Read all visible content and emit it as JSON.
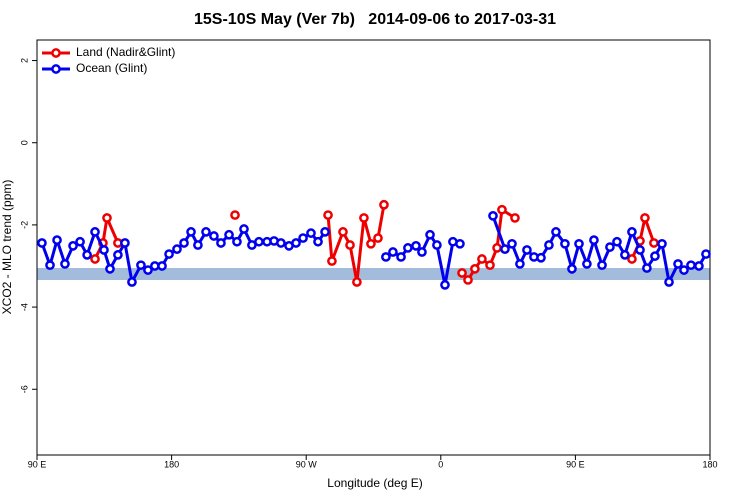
{
  "chart_data": {
    "type": "line",
    "title": "15S-10S May (Ver 7b)   2014-09-06 to 2017-03-31",
    "x_label": "Longitude (deg E)",
    "y_label": "XCO2 - MLO trend (ppm)",
    "xlim": [
      90,
      540
    ],
    "ylim": [
      -7.6,
      2.5
    ],
    "xticks": [
      {
        "value": 90,
        "label": "90 E"
      },
      180,
      {
        "value": 270,
        "label": "90 W"
      },
      {
        "value": 360,
        "label": "0"
      },
      {
        "value": 450,
        "label": "90 E"
      },
      {
        "value": 540,
        "label": "180"
      }
    ],
    "yticks": [
      -6,
      -4,
      -2,
      0,
      2
    ],
    "legend": "upper left",
    "series": [
      {
        "name": "Land (Nadir&Glint)",
        "color": "#ee0000",
        "x": [
          128.8,
          134.1,
          136.8,
          144.1,
          190,
          222.4,
          260,
          284.6,
          287.2,
          294.6,
          299.3,
          303.9,
          308.6,
          313.3,
          318.0,
          322.0,
          345,
          374.2,
          378.2,
          382.8,
          387.5,
          392.9,
          397.6,
          400.9,
          409.6,
          460,
          487.8,
          493.2,
          496.5,
          502.5
        ],
        "values": [
          -2.83,
          -2.44,
          -1.83,
          -2.44,
          null,
          -1.76,
          null,
          -1.76,
          -2.88,
          -2.17,
          -2.49,
          -3.39,
          -1.83,
          -2.46,
          -2.32,
          -1.51,
          null,
          -3.17,
          -3.34,
          -3.07,
          -2.83,
          -2.98,
          -2.56,
          -1.63,
          -1.83,
          null,
          -2.83,
          -2.39,
          -1.83,
          -2.44
        ]
      },
      {
        "name": "Ocean (Glint)",
        "color": "#0000ee",
        "x": [
          93.3,
          98.7,
          103.4,
          108.7,
          114.1,
          118.8,
          123.5,
          128.8,
          134.8,
          138.8,
          144.1,
          148.8,
          153.5,
          159.5,
          164.2,
          168.8,
          173.6,
          178.3,
          183.6,
          188.3,
          193.0,
          197.6,
          203.0,
          208.3,
          213.0,
          218.4,
          223.7,
          228.4,
          233.7,
          238.4,
          243.8,
          248.5,
          253.1,
          258.5,
          263.2,
          267.9,
          273.2,
          277.9,
          282.6,
          300,
          323.3,
          328.0,
          333.4,
          338.0,
          343.4,
          347.4,
          352.8,
          357.4,
          362.8,
          368.1,
          372.8,
          385,
          394.9,
          402.9,
          407.6,
          412.9,
          417.6,
          422.3,
          427.0,
          432.3,
          437.0,
          443.0,
          447.7,
          452.4,
          457.7,
          462.4,
          467.8,
          473.1,
          477.8,
          483.1,
          487.8,
          493.2,
          497.8,
          503.2,
          507.9,
          512.6,
          518.6,
          522.6,
          527.3,
          532.6,
          537.3
        ],
        "values": [
          -2.44,
          -2.98,
          -2.37,
          -2.95,
          -2.51,
          -2.41,
          -2.73,
          -2.17,
          -2.61,
          -3.07,
          -2.73,
          -2.44,
          -3.39,
          -2.98,
          -3.1,
          -3.0,
          -3.0,
          -2.71,
          -2.59,
          -2.44,
          -2.17,
          -2.49,
          -2.17,
          -2.27,
          -2.44,
          -2.24,
          -2.41,
          -2.1,
          -2.49,
          -2.41,
          -2.41,
          -2.39,
          -2.44,
          -2.51,
          -2.44,
          -2.32,
          -2.2,
          -2.41,
          -2.17,
          null,
          -2.78,
          -2.66,
          -2.78,
          -2.56,
          -2.51,
          -2.66,
          -2.24,
          -2.49,
          -3.46,
          -2.41,
          -2.46,
          null,
          -1.78,
          -2.59,
          -2.46,
          -2.95,
          -2.61,
          -2.78,
          -2.8,
          -2.49,
          -2.17,
          -2.46,
          -3.07,
          -2.46,
          -2.95,
          -2.37,
          -2.98,
          -2.54,
          -2.41,
          -2.73,
          -2.17,
          -2.61,
          -3.05,
          -2.76,
          -2.46,
          -3.39,
          -2.95,
          -3.1,
          -2.98,
          -3.0,
          -2.71
        ]
      }
    ]
  }
}
